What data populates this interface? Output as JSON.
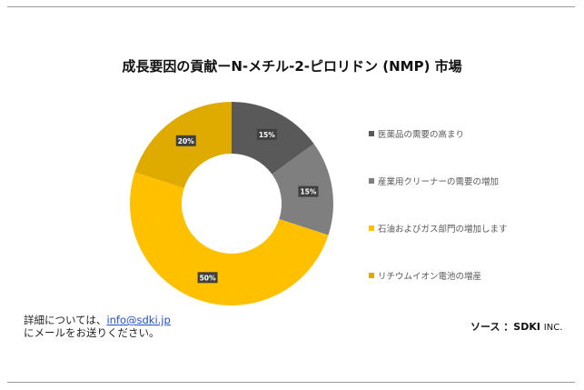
{
  "chart_data": {
    "type": "pie",
    "variant": "donut",
    "title": "成長要因の貢献ーN-メチル-2-ピロリドン (NMP) 市場",
    "categories": [
      "医薬品の需要の高まり",
      "産業用クリーナーの需要の増加",
      "石油およびガス部門の増加します",
      "リチウムイオン電池の増産"
    ],
    "values": [
      15,
      15,
      50,
      20
    ],
    "labels": [
      "15%",
      "15%",
      "50%",
      "20%"
    ],
    "colors": [
      "#595959",
      "#7f7f7f",
      "#ffc000",
      "#e0ab00"
    ],
    "legend": "right"
  },
  "footer": {
    "contact_prefix": "詳細については、",
    "email": "info@sdki.jp",
    "contact_suffix": "にメールをお送りください。",
    "source_label": "ソース ：SDKI",
    "source_inc": "INC."
  }
}
